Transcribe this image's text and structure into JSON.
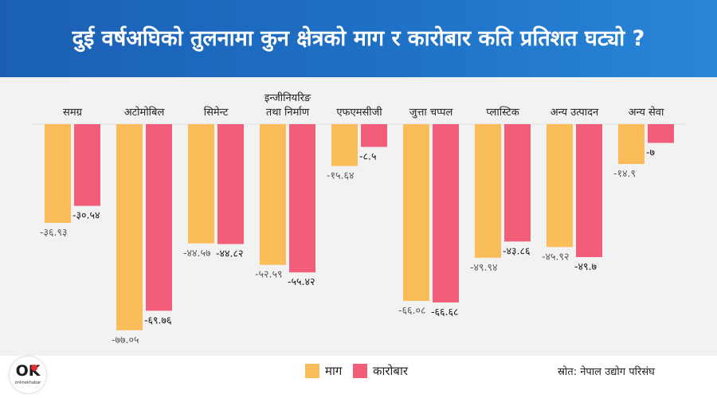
{
  "header": {
    "title": "दुई वर्षअघिको तुलनामा कुन क्षेत्रको माग र कारोबार कति प्रतिशत घट्यो ?"
  },
  "logo": {
    "mark": "OK",
    "sub": "onlinekhabar"
  },
  "source": "स्रोत: नेपाल उद्योग परिसंघ",
  "chart_data": {
    "type": "bar",
    "categories": [
      "समग्र",
      "अटोमोबिल",
      "सिमेन्ट",
      "इन्जीनियरिङ तथा निर्माण",
      "एफएमसीजी",
      "जुत्ता चप्पल",
      "प्लास्टिक",
      "अन्य उत्पादन",
      "अन्य सेवा"
    ],
    "category_lines": [
      [
        "समग्र"
      ],
      [
        "अटोमोबिल"
      ],
      [
        "सिमेन्ट"
      ],
      [
        "इन्जीनियरिङ",
        "तथा निर्माण"
      ],
      [
        "एफएमसीजी"
      ],
      [
        "जुत्ता चप्पल"
      ],
      [
        "प्लास्टिक"
      ],
      [
        "अन्य उत्पादन"
      ],
      [
        "अन्य सेवा"
      ]
    ],
    "series": [
      {
        "name": "माग",
        "color": "#fbbd5a",
        "values": [
          -36.93,
          -77.05,
          -44.57,
          -52.59,
          -15.64,
          -66.08,
          -49.94,
          -45.92,
          -14.9
        ],
        "labels": [
          "-३६.९३",
          "-७७.०५",
          "-४४.५७",
          "-५२.५९",
          "-१५.६४",
          "-६६.०८",
          "-४९.९४",
          "-४५.९२",
          "-१४.९"
        ]
      },
      {
        "name": "कारोबार",
        "color": "#f25e7a",
        "values": [
          -30.54,
          -69.76,
          -44.82,
          -55.42,
          -8.5,
          -66.68,
          -43.86,
          -49.7,
          -7
        ],
        "labels": [
          "-३०.५४",
          "-६९.७६",
          "-४४.८२",
          "-५५.४२",
          "-८.५",
          "-६६.६८",
          "-४३.८६",
          "-४९.७",
          "-७"
        ]
      }
    ],
    "ylim": [
      -80,
      0
    ],
    "grid": false,
    "legend": "bottom-center"
  }
}
